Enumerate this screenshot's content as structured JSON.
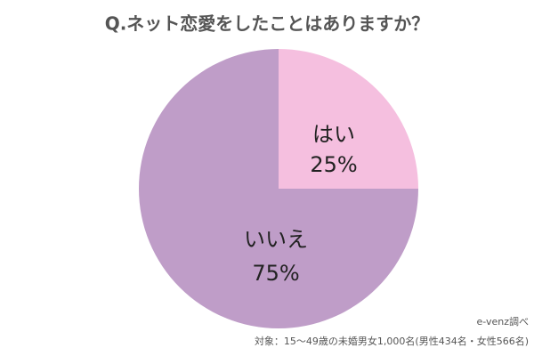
{
  "chart_data": {
    "type": "pie",
    "title": "Q.ネット恋愛をしたことはありますか？",
    "categories": [
      "はい",
      "いいえ"
    ],
    "values": [
      25,
      75
    ],
    "value_labels": [
      "25%",
      "75%"
    ],
    "colors": [
      "#f5bfdf",
      "#bf9dc8"
    ],
    "source": "e-venz調べ",
    "note": "対象：15〜49歳の未婚男女1,000名(男性434名・女性566名)"
  }
}
